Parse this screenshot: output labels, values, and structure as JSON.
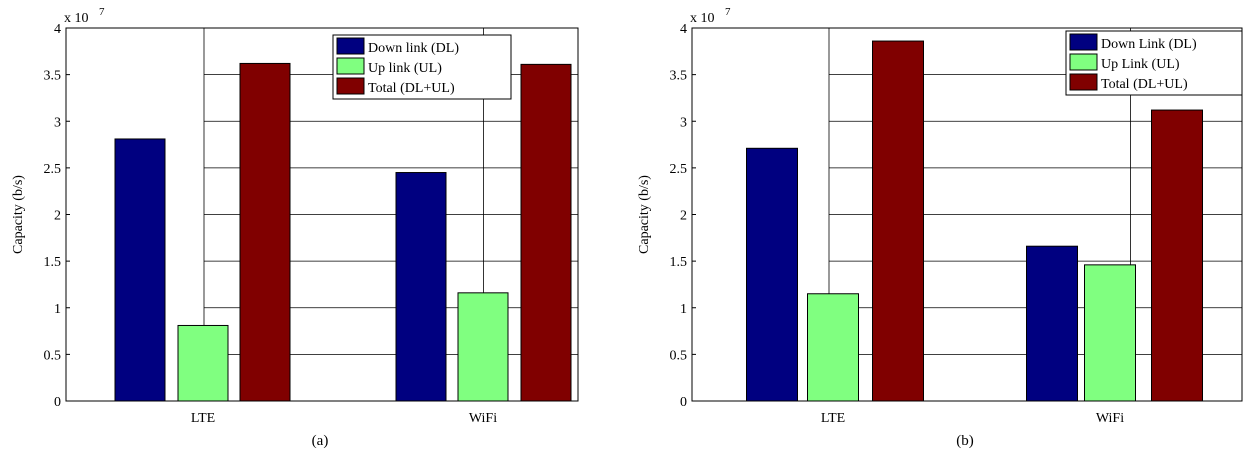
{
  "chart_data": [
    {
      "type": "bar",
      "subfigure_label": "(a)",
      "ylabel": "Capacity (b/s)",
      "multiplier_label": "x 10",
      "multiplier_exponent": "7",
      "ylim": [
        0,
        4
      ],
      "yticks": [
        "0",
        "0.5",
        "1",
        "1.5",
        "2",
        "2.5",
        "3",
        "3.5",
        "4"
      ],
      "categories": [
        "LTE",
        "WiFi"
      ],
      "legend_position": "top-right",
      "grid": "partial",
      "series": [
        {
          "name": "Down link (DL)",
          "color": "#000080",
          "values": [
            2.81,
            2.45
          ]
        },
        {
          "name": "Up link (UL)",
          "color": "#80ff80",
          "values": [
            0.81,
            1.16
          ]
        },
        {
          "name": "Total (DL+UL)",
          "color": "#800000",
          "values": [
            3.62,
            3.61
          ]
        }
      ]
    },
    {
      "type": "bar",
      "subfigure_label": "(b)",
      "ylabel": "Capacity (b/s)",
      "multiplier_label": "x 10",
      "multiplier_exponent": "7",
      "ylim": [
        0,
        4
      ],
      "yticks": [
        "0",
        "0.5",
        "1",
        "1.5",
        "2",
        "2.5",
        "3",
        "3.5",
        "4"
      ],
      "categories": [
        "LTE",
        "WiFi"
      ],
      "legend_position": "top-right",
      "grid": "partial",
      "series": [
        {
          "name": "Down Link (DL)",
          "color": "#000080",
          "values": [
            2.71,
            1.66
          ]
        },
        {
          "name": "Up Link (UL)",
          "color": "#80ff80",
          "values": [
            1.15,
            1.46
          ]
        },
        {
          "name": "Total (DL+UL)",
          "color": "#800000",
          "values": [
            3.86,
            3.12
          ]
        }
      ]
    }
  ]
}
